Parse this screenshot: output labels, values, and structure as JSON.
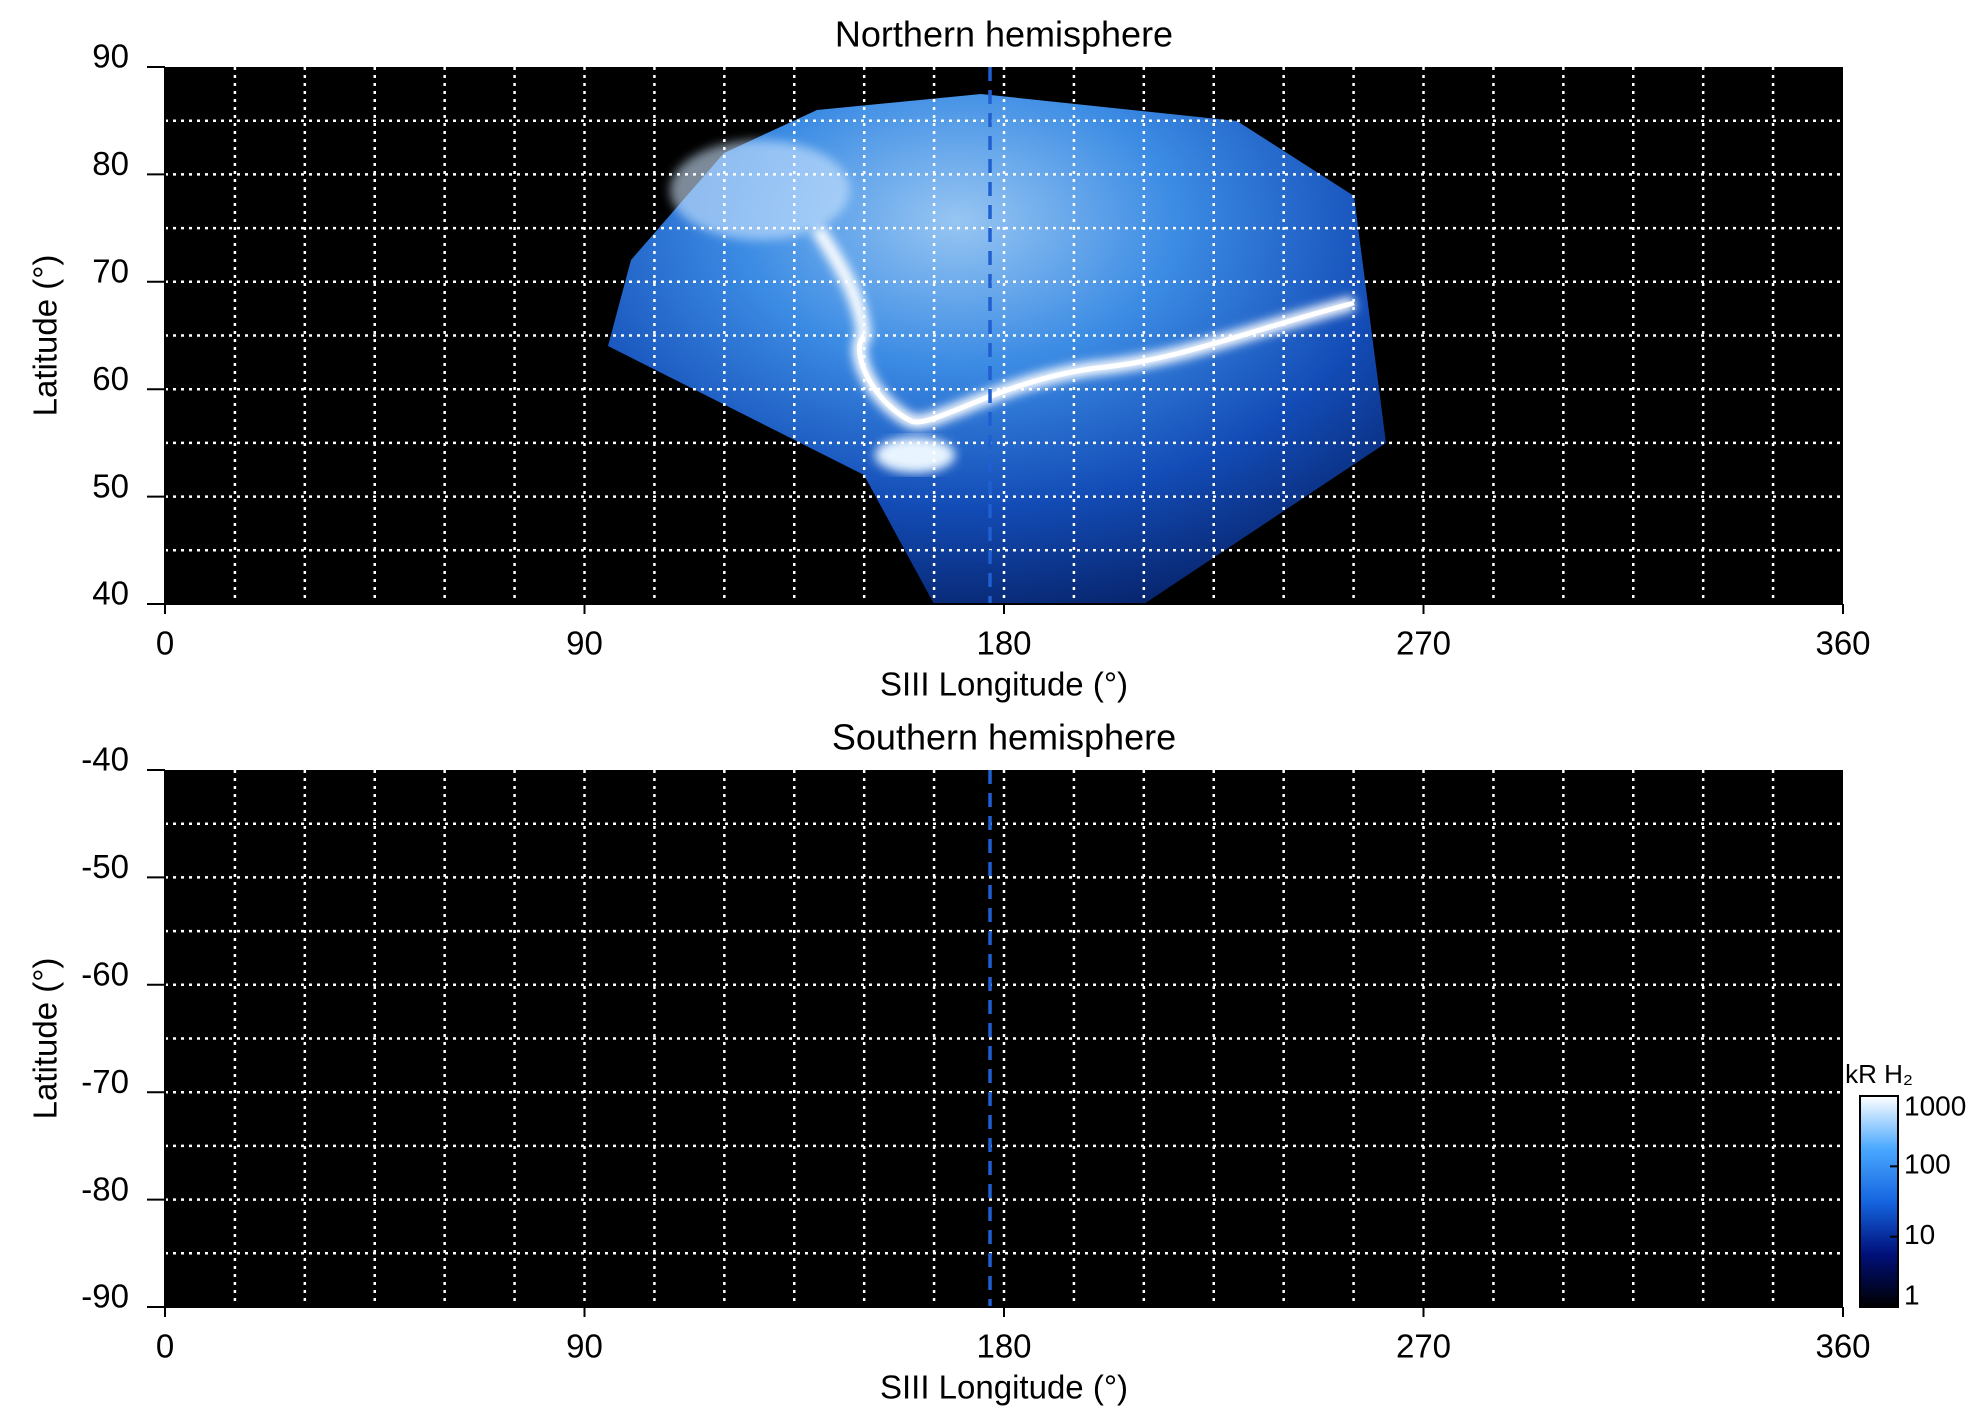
{
  "chart_data": [
    {
      "type": "heatmap",
      "title": "Northern hemisphere",
      "xlabel": "SIII Longitude (°)",
      "ylabel": "Latitude (°)",
      "xlim": [
        0,
        360
      ],
      "ylim": [
        40,
        90
      ],
      "xticks": [
        0,
        90,
        180,
        270,
        360
      ],
      "yticks": [
        40,
        50,
        60,
        70,
        80,
        90
      ],
      "xgrid": [
        15,
        30,
        45,
        60,
        75,
        90,
        105,
        120,
        135,
        150,
        165,
        180,
        195,
        210,
        225,
        240,
        255,
        270,
        285,
        300,
        315,
        330,
        345
      ],
      "ygrid": [
        45,
        50,
        55,
        60,
        65,
        70,
        75,
        80,
        85
      ],
      "reference_longitude": 177,
      "reference_color": "#1f5fd0",
      "background": "#000000"
    },
    {
      "type": "heatmap",
      "title": "Southern hemisphere",
      "xlabel": "SIII Longitude (°)",
      "ylabel": "Latitude (°)",
      "xlim": [
        0,
        360
      ],
      "ylim": [
        -90,
        -40
      ],
      "xticks": [
        0,
        90,
        180,
        270,
        360
      ],
      "yticks": [
        -90,
        -80,
        -70,
        -60,
        -50,
        -40
      ],
      "xgrid": [
        15,
        30,
        45,
        60,
        75,
        90,
        105,
        120,
        135,
        150,
        165,
        180,
        195,
        210,
        225,
        240,
        255,
        270,
        285,
        300,
        315,
        330,
        345
      ],
      "ygrid": [
        -85,
        -80,
        -75,
        -70,
        -65,
        -60,
        -55,
        -50,
        -45
      ],
      "reference_longitude": 177,
      "reference_color": "#1f5fd0",
      "background": "#000000",
      "colorbar": {
        "label": "kR H₂",
        "scale": "log",
        "lim": [
          1,
          1000
        ],
        "ticks": [
          1,
          10,
          100,
          1000
        ],
        "colors": [
          "#000000",
          "#00107a",
          "#1565e0",
          "#4aa8ff",
          "#ffffff"
        ]
      }
    }
  ]
}
